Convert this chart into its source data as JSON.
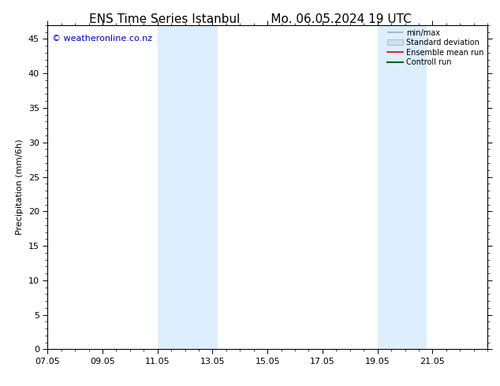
{
  "title_left": "ENS Time Series Istanbul",
  "title_right": "Mo. 06.05.2024 19 UTC",
  "ylabel": "Precipitation (mm/6h)",
  "xlabel": "",
  "xlim": [
    0,
    16
  ],
  "ylim": [
    0,
    47
  ],
  "yticks": [
    0,
    5,
    10,
    15,
    20,
    25,
    30,
    35,
    40,
    45
  ],
  "xtick_labels": [
    "07.05",
    "09.05",
    "11.05",
    "13.05",
    "15.05",
    "17.05",
    "19.05",
    "21.05"
  ],
  "xtick_positions": [
    0,
    2,
    4,
    6,
    8,
    10,
    12,
    14
  ],
  "shaded_regions": [
    {
      "xmin": 4.0,
      "xmax": 6.2,
      "color": "#ddeeff"
    },
    {
      "xmin": 12.0,
      "xmax": 13.8,
      "color": "#ddeeff"
    }
  ],
  "copyright_text": "© weatheronline.co.nz",
  "copyright_color": "#0000cc",
  "legend_items": [
    {
      "label": "min/max",
      "color": "#aaaaaa",
      "lw": 1.2,
      "style": "solid",
      "type": "line_caps"
    },
    {
      "label": "Standard deviation",
      "color": "#cce0f0",
      "lw": 5,
      "style": "solid",
      "type": "patch"
    },
    {
      "label": "Ensemble mean run",
      "color": "#dd0000",
      "lw": 1.2,
      "style": "solid",
      "type": "line"
    },
    {
      "label": "Controll run",
      "color": "#006600",
      "lw": 1.5,
      "style": "solid",
      "type": "line"
    }
  ],
  "bg_color": "#ffffff",
  "title_fontsize": 11,
  "axis_fontsize": 8,
  "tick_fontsize": 8
}
